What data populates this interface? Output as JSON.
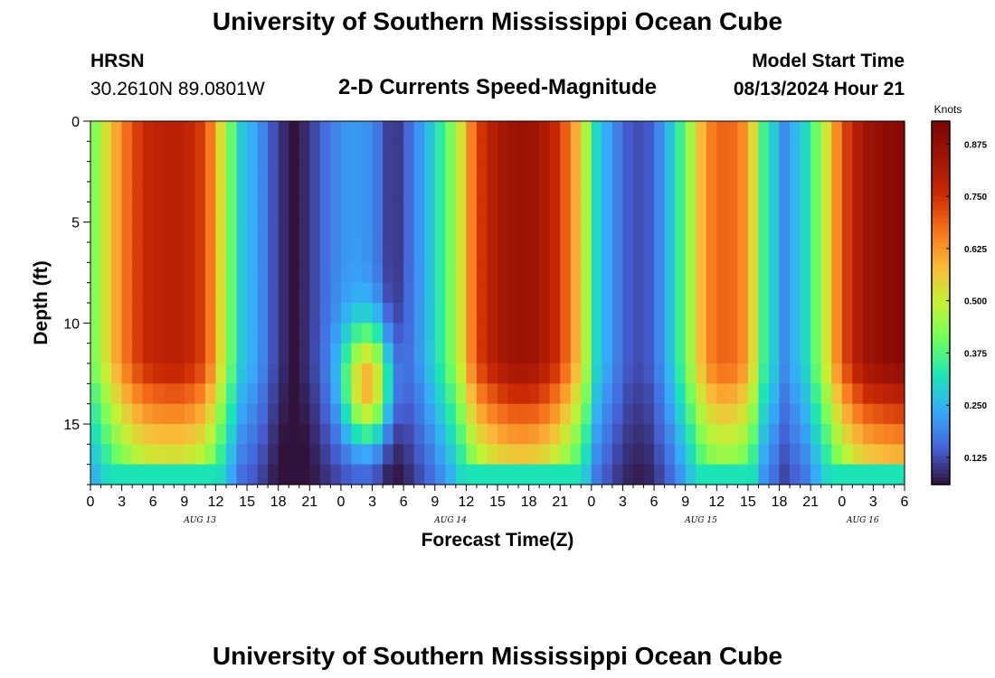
{
  "header": {
    "title": "University of Southern Mississippi Ocean Cube",
    "station_name": "HRSN",
    "station_coords": "30.2610N  89.0801W",
    "plot_title": "2-D Currents Speed-Magnitude",
    "model_start_label": "Model Start Time",
    "model_start_value": "08/13/2024 Hour 21"
  },
  "footer": {
    "title": "University of Southern Mississippi Ocean Cube"
  },
  "colors": {
    "background": "#ffffff",
    "text": "#000000"
  },
  "chart_data": {
    "type": "heatmap",
    "title": "2-D Currents Speed-Magnitude",
    "xlabel": "Forecast Time(Z)",
    "ylabel": "Depth (ft)",
    "x_hours": [
      0,
      3,
      6,
      9,
      12,
      15,
      18,
      21,
      24,
      27,
      30,
      33,
      36,
      39,
      42,
      45,
      48,
      51,
      54,
      57,
      60,
      63,
      66,
      69,
      72,
      75,
      78
    ],
    "x_tick_labels": [
      "0",
      "3",
      "6",
      "9",
      "12",
      "15",
      "18",
      "21",
      "0",
      "3",
      "6",
      "9",
      "12",
      "15",
      "18",
      "21",
      "0",
      "3",
      "6",
      "9",
      "12",
      "15",
      "18",
      "21",
      "0",
      "3",
      "6"
    ],
    "x_range_hours": [
      0,
      78
    ],
    "date_labels": [
      {
        "label": "AUG 13",
        "hour": 10.5
      },
      {
        "label": "AUG 14",
        "hour": 34.5
      },
      {
        "label": "AUG 15",
        "hour": 58.5
      },
      {
        "label": "AUG 16",
        "hour": 74
      }
    ],
    "y_ticks": [
      0,
      5,
      10,
      15
    ],
    "y_range": [
      0,
      18
    ],
    "y_inverted": true,
    "colorbar": {
      "label": "Knots",
      "min": 0.06,
      "max": 0.93,
      "ticks": [
        "0.125",
        "0.250",
        "0.375",
        "0.500",
        "0.625",
        "0.750",
        "0.875"
      ],
      "tick_values": [
        0.125,
        0.25,
        0.375,
        0.5,
        0.625,
        0.75,
        0.875
      ]
    },
    "speed_profile_surface": [
      {
        "hour": 0,
        "speed": 0.38
      },
      {
        "hour": 1,
        "speed": 0.48
      },
      {
        "hour": 3,
        "speed": 0.65
      },
      {
        "hour": 5,
        "speed": 0.76
      },
      {
        "hour": 7,
        "speed": 0.79
      },
      {
        "hour": 9,
        "speed": 0.79
      },
      {
        "hour": 11,
        "speed": 0.72
      },
      {
        "hour": 12,
        "speed": 0.6
      },
      {
        "hour": 13,
        "speed": 0.45
      },
      {
        "hour": 14.5,
        "speed": 0.28
      },
      {
        "hour": 16,
        "speed": 0.22
      },
      {
        "hour": 18,
        "speed": 0.1
      },
      {
        "hour": 19.5,
        "speed": 0.06
      },
      {
        "hour": 21,
        "speed": 0.1
      },
      {
        "hour": 23,
        "speed": 0.18
      },
      {
        "hour": 25,
        "speed": 0.22
      },
      {
        "hour": 27,
        "speed": 0.2
      },
      {
        "hour": 29,
        "speed": 0.08
      },
      {
        "hour": 31,
        "speed": 0.18
      },
      {
        "hour": 33,
        "speed": 0.3
      },
      {
        "hour": 35,
        "speed": 0.45
      },
      {
        "hour": 37,
        "speed": 0.72
      },
      {
        "hour": 39,
        "speed": 0.82
      },
      {
        "hour": 41,
        "speed": 0.86
      },
      {
        "hour": 43,
        "speed": 0.84
      },
      {
        "hour": 45,
        "speed": 0.74
      },
      {
        "hour": 47,
        "speed": 0.55
      },
      {
        "hour": 48.5,
        "speed": 0.3
      },
      {
        "hour": 50,
        "speed": 0.2
      },
      {
        "hour": 52,
        "speed": 0.12
      },
      {
        "hour": 53.5,
        "speed": 0.14
      },
      {
        "hour": 55,
        "speed": 0.22
      },
      {
        "hour": 57,
        "speed": 0.4
      },
      {
        "hour": 59,
        "speed": 0.64
      },
      {
        "hour": 61,
        "speed": 0.7
      },
      {
        "hour": 63,
        "speed": 0.62
      },
      {
        "hour": 64.5,
        "speed": 0.36
      },
      {
        "hour": 66.5,
        "speed": 0.2
      },
      {
        "hour": 68.5,
        "speed": 0.3
      },
      {
        "hour": 70,
        "speed": 0.45
      },
      {
        "hour": 72,
        "speed": 0.7
      },
      {
        "hour": 74,
        "speed": 0.84
      },
      {
        "hour": 76,
        "speed": 0.88
      },
      {
        "hour": 78,
        "speed": 0.9
      }
    ]
  }
}
